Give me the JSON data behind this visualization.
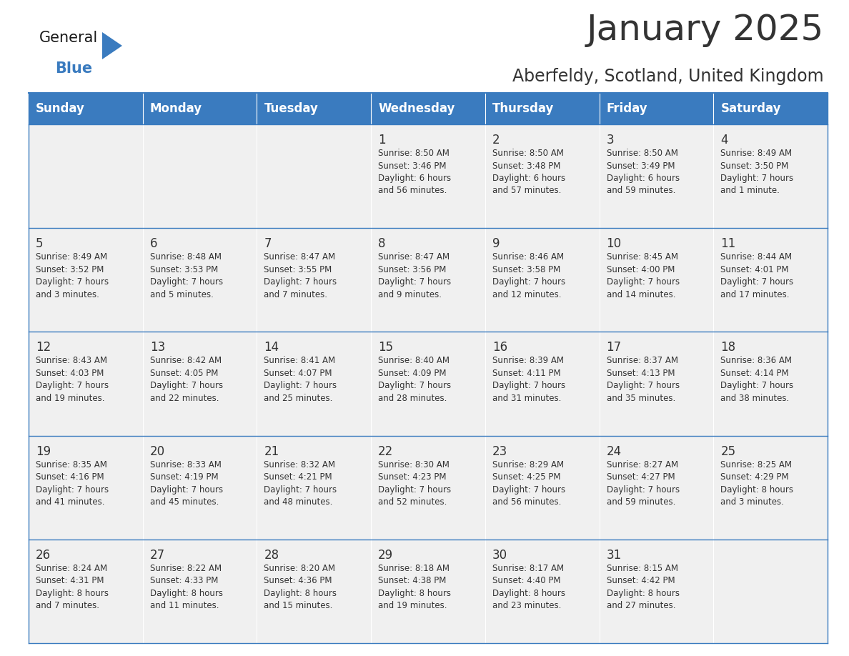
{
  "title": "January 2025",
  "subtitle": "Aberfeldy, Scotland, United Kingdom",
  "header_bg": "#3a7bbf",
  "header_text_color": "#ffffff",
  "cell_bg_light": "#f0f0f0",
  "cell_bg_white": "#ffffff",
  "border_color": "#3a7bbf",
  "text_color": "#333333",
  "days_of_week": [
    "Sunday",
    "Monday",
    "Tuesday",
    "Wednesday",
    "Thursday",
    "Friday",
    "Saturday"
  ],
  "weeks": [
    [
      {
        "day": null,
        "info": null
      },
      {
        "day": null,
        "info": null
      },
      {
        "day": null,
        "info": null
      },
      {
        "day": 1,
        "info": "Sunrise: 8:50 AM\nSunset: 3:46 PM\nDaylight: 6 hours\nand 56 minutes."
      },
      {
        "day": 2,
        "info": "Sunrise: 8:50 AM\nSunset: 3:48 PM\nDaylight: 6 hours\nand 57 minutes."
      },
      {
        "day": 3,
        "info": "Sunrise: 8:50 AM\nSunset: 3:49 PM\nDaylight: 6 hours\nand 59 minutes."
      },
      {
        "day": 4,
        "info": "Sunrise: 8:49 AM\nSunset: 3:50 PM\nDaylight: 7 hours\nand 1 minute."
      }
    ],
    [
      {
        "day": 5,
        "info": "Sunrise: 8:49 AM\nSunset: 3:52 PM\nDaylight: 7 hours\nand 3 minutes."
      },
      {
        "day": 6,
        "info": "Sunrise: 8:48 AM\nSunset: 3:53 PM\nDaylight: 7 hours\nand 5 minutes."
      },
      {
        "day": 7,
        "info": "Sunrise: 8:47 AM\nSunset: 3:55 PM\nDaylight: 7 hours\nand 7 minutes."
      },
      {
        "day": 8,
        "info": "Sunrise: 8:47 AM\nSunset: 3:56 PM\nDaylight: 7 hours\nand 9 minutes."
      },
      {
        "day": 9,
        "info": "Sunrise: 8:46 AM\nSunset: 3:58 PM\nDaylight: 7 hours\nand 12 minutes."
      },
      {
        "day": 10,
        "info": "Sunrise: 8:45 AM\nSunset: 4:00 PM\nDaylight: 7 hours\nand 14 minutes."
      },
      {
        "day": 11,
        "info": "Sunrise: 8:44 AM\nSunset: 4:01 PM\nDaylight: 7 hours\nand 17 minutes."
      }
    ],
    [
      {
        "day": 12,
        "info": "Sunrise: 8:43 AM\nSunset: 4:03 PM\nDaylight: 7 hours\nand 19 minutes."
      },
      {
        "day": 13,
        "info": "Sunrise: 8:42 AM\nSunset: 4:05 PM\nDaylight: 7 hours\nand 22 minutes."
      },
      {
        "day": 14,
        "info": "Sunrise: 8:41 AM\nSunset: 4:07 PM\nDaylight: 7 hours\nand 25 minutes."
      },
      {
        "day": 15,
        "info": "Sunrise: 8:40 AM\nSunset: 4:09 PM\nDaylight: 7 hours\nand 28 minutes."
      },
      {
        "day": 16,
        "info": "Sunrise: 8:39 AM\nSunset: 4:11 PM\nDaylight: 7 hours\nand 31 minutes."
      },
      {
        "day": 17,
        "info": "Sunrise: 8:37 AM\nSunset: 4:13 PM\nDaylight: 7 hours\nand 35 minutes."
      },
      {
        "day": 18,
        "info": "Sunrise: 8:36 AM\nSunset: 4:14 PM\nDaylight: 7 hours\nand 38 minutes."
      }
    ],
    [
      {
        "day": 19,
        "info": "Sunrise: 8:35 AM\nSunset: 4:16 PM\nDaylight: 7 hours\nand 41 minutes."
      },
      {
        "day": 20,
        "info": "Sunrise: 8:33 AM\nSunset: 4:19 PM\nDaylight: 7 hours\nand 45 minutes."
      },
      {
        "day": 21,
        "info": "Sunrise: 8:32 AM\nSunset: 4:21 PM\nDaylight: 7 hours\nand 48 minutes."
      },
      {
        "day": 22,
        "info": "Sunrise: 8:30 AM\nSunset: 4:23 PM\nDaylight: 7 hours\nand 52 minutes."
      },
      {
        "day": 23,
        "info": "Sunrise: 8:29 AM\nSunset: 4:25 PM\nDaylight: 7 hours\nand 56 minutes."
      },
      {
        "day": 24,
        "info": "Sunrise: 8:27 AM\nSunset: 4:27 PM\nDaylight: 7 hours\nand 59 minutes."
      },
      {
        "day": 25,
        "info": "Sunrise: 8:25 AM\nSunset: 4:29 PM\nDaylight: 8 hours\nand 3 minutes."
      }
    ],
    [
      {
        "day": 26,
        "info": "Sunrise: 8:24 AM\nSunset: 4:31 PM\nDaylight: 8 hours\nand 7 minutes."
      },
      {
        "day": 27,
        "info": "Sunrise: 8:22 AM\nSunset: 4:33 PM\nDaylight: 8 hours\nand 11 minutes."
      },
      {
        "day": 28,
        "info": "Sunrise: 8:20 AM\nSunset: 4:36 PM\nDaylight: 8 hours\nand 15 minutes."
      },
      {
        "day": 29,
        "info": "Sunrise: 8:18 AM\nSunset: 4:38 PM\nDaylight: 8 hours\nand 19 minutes."
      },
      {
        "day": 30,
        "info": "Sunrise: 8:17 AM\nSunset: 4:40 PM\nDaylight: 8 hours\nand 23 minutes."
      },
      {
        "day": 31,
        "info": "Sunrise: 8:15 AM\nSunset: 4:42 PM\nDaylight: 8 hours\nand 27 minutes."
      },
      {
        "day": null,
        "info": null
      }
    ]
  ],
  "logo_color_general": "#1a1a1a",
  "logo_color_blue": "#3a7bbf",
  "logo_triangle_color": "#3a7bbf",
  "title_fontsize": 36,
  "subtitle_fontsize": 17,
  "header_fontsize": 12,
  "day_num_fontsize": 12,
  "info_fontsize": 8.5
}
